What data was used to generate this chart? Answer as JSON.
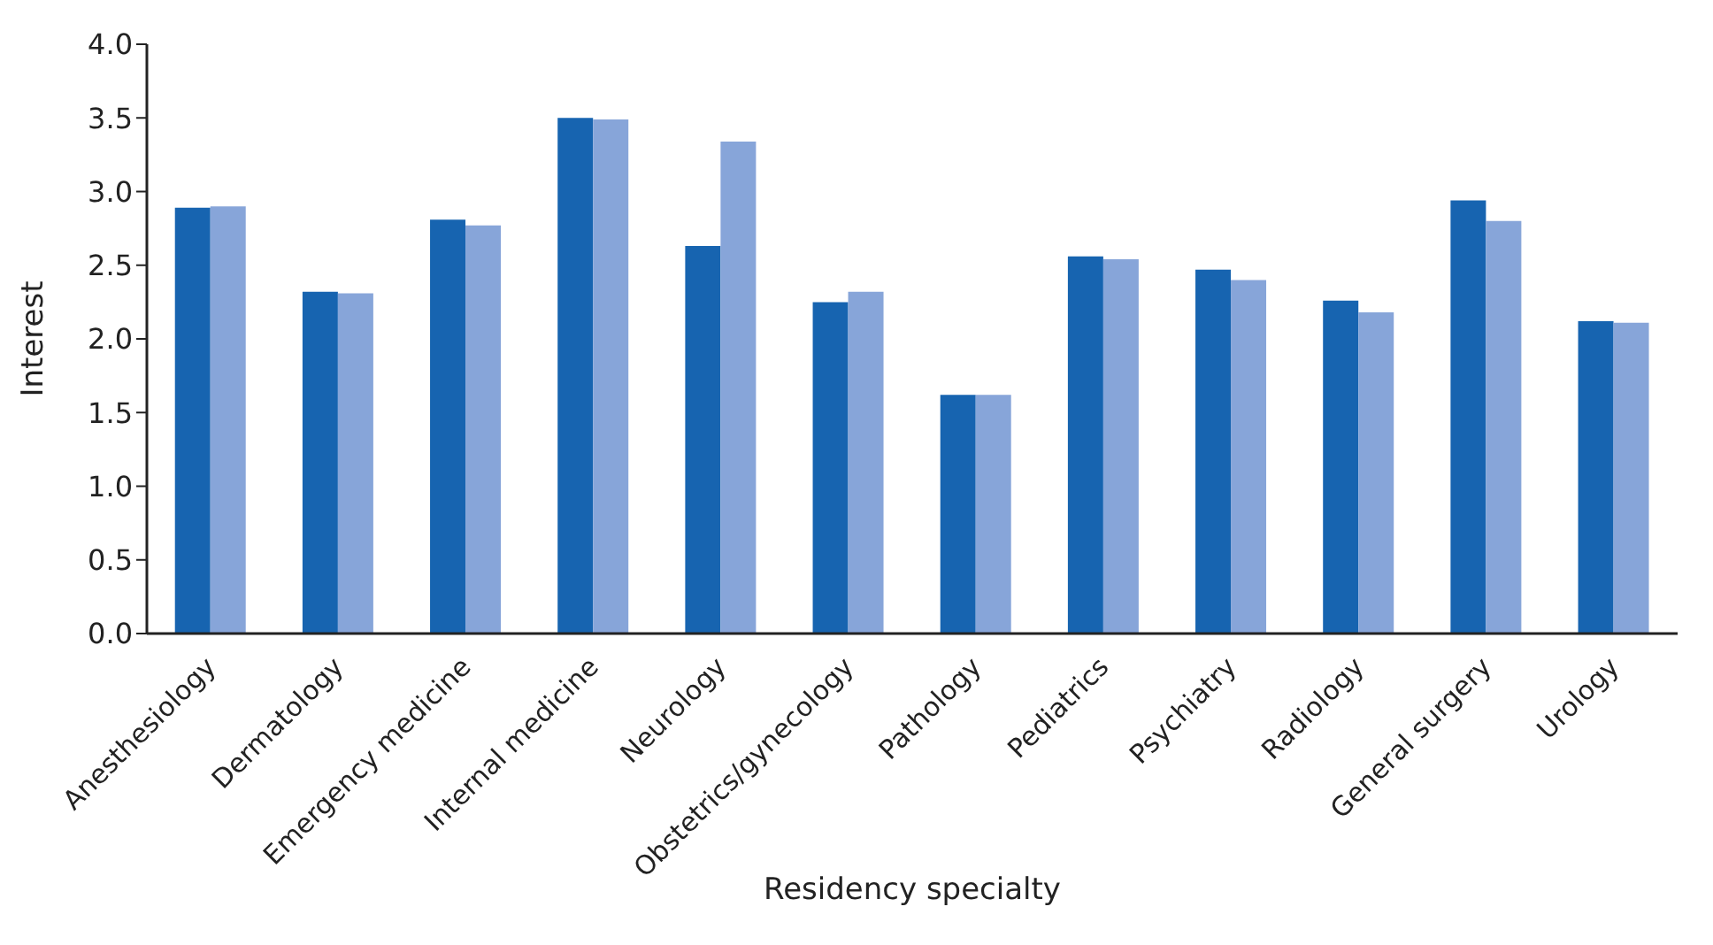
{
  "chart_data": {
    "type": "bar",
    "xlabel": "Residency specialty",
    "ylabel": "Interest",
    "categories": [
      "Anesthesiology",
      "Dermatology",
      "Emergency medicine",
      "Internal medicine",
      "Neurology",
      "Obstetrics/gynecology",
      "Pathology",
      "Pediatrics",
      "Psychiatry",
      "Radiology",
      "General surgery",
      "Urology"
    ],
    "series": [
      {
        "color": "#1764b0",
        "values": [
          2.89,
          2.32,
          2.81,
          3.5,
          2.63,
          2.25,
          1.62,
          2.56,
          2.47,
          2.26,
          2.94,
          2.12
        ]
      },
      {
        "color": "#87a5d9",
        "values": [
          2.9,
          2.31,
          2.77,
          3.49,
          3.34,
          2.32,
          1.62,
          2.54,
          2.4,
          2.18,
          2.8,
          2.11
        ]
      }
    ],
    "ylim": [
      0,
      4
    ],
    "yticks": [
      {
        "value": 0,
        "label": "0.0"
      },
      0.5,
      {
        "value": 1,
        "label": "1.0"
      },
      1.5,
      {
        "value": 2,
        "label": "2.0"
      },
      2.5,
      {
        "value": 3,
        "label": "3.0"
      },
      3.5,
      {
        "value": 4,
        "label": "4.0"
      }
    ],
    "grid": false,
    "legend": false
  }
}
